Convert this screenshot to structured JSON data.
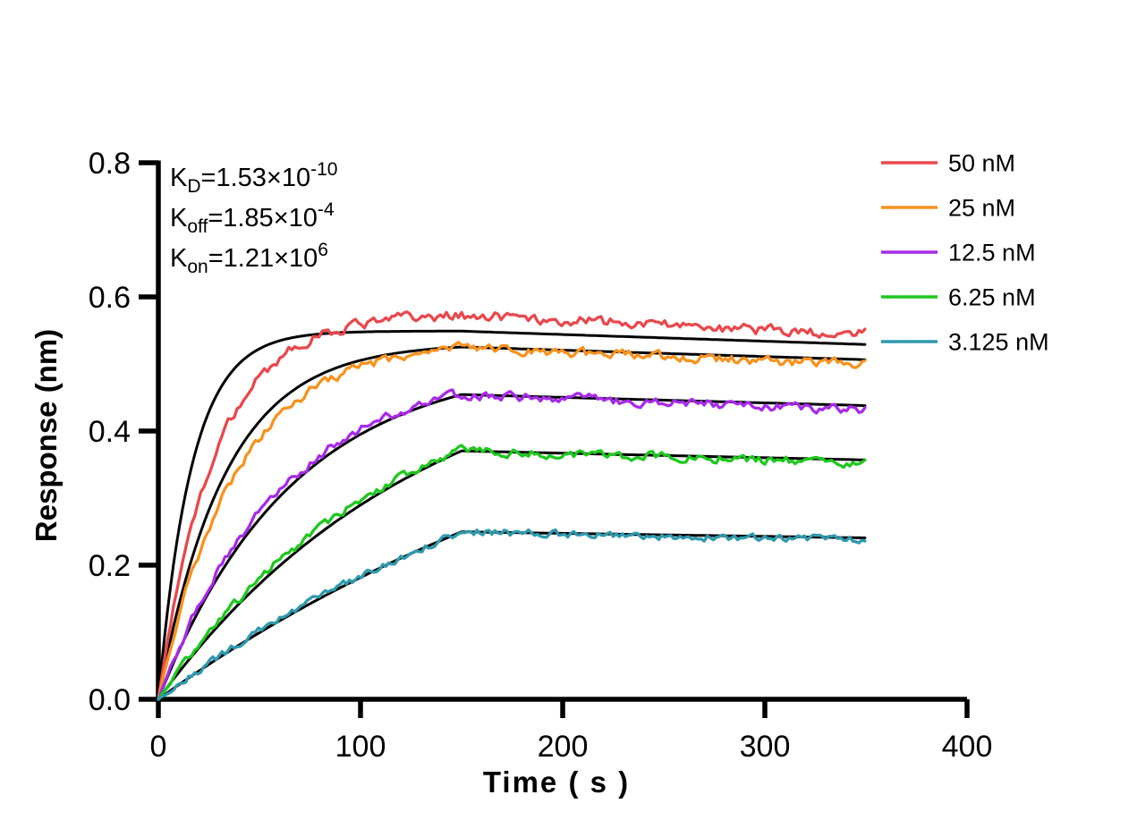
{
  "figure": {
    "background_color": "#FFFFFF",
    "description": "Binding kinetics sensorgram: response vs time for five analyte concentrations with black 1:1 model fit curves"
  },
  "chart_data": {
    "type": "line",
    "title": "",
    "xlabel": "Time ( s )",
    "ylabel": "Response (nm)",
    "xlim": [
      0,
      400
    ],
    "ylim": [
      0,
      0.8
    ],
    "xticks": [
      "0",
      "100",
      "200",
      "300",
      "400"
    ],
    "xtick_values": [
      0,
      100,
      200,
      300,
      400
    ],
    "yticks": [
      "0.0",
      "0.2",
      "0.4",
      "0.6",
      "0.8"
    ],
    "ytick_values": [
      0,
      0.2,
      0.4,
      0.6,
      0.8
    ],
    "grid": false,
    "legend_position": "top-right",
    "association_end_s": 150,
    "trace_end_s": 350,
    "axis_color": "#000000",
    "fit_color": "#000000",
    "annotation": {
      "lines": [
        {
          "base": "K",
          "sub": "D",
          "body": "=1.53×10",
          "sup": "-10",
          "plain": "KD=1.53×10^-10"
        },
        {
          "base": "K",
          "sub": "off",
          "body": "=1.85×10",
          "sup": "-4",
          "plain": "Koff=1.85×10^-4"
        },
        {
          "base": "K",
          "sub": "on",
          "body": "=1.21×10",
          "sup": "6",
          "plain": "Kon=1.21×10^6"
        }
      ]
    },
    "series": [
      {
        "label": "50 nM",
        "color": "#E8484C",
        "plateau_nm": 0.57,
        "end_nm": 0.53,
        "data_model": {
          "req": 0.575,
          "kobs": 0.036,
          "koff": 0.00025,
          "noise": 0.0068
        },
        "fit_model": {
          "req": 0.549,
          "kobs": 0.0607,
          "koff": 0.000185
        }
      },
      {
        "label": "25 nM",
        "color": "#F6921E",
        "plateau_nm": 0.53,
        "end_nm": 0.505,
        "data_model": {
          "req": 0.535,
          "kobs": 0.026,
          "koff": 0.00025,
          "noise": 0.006
        },
        "fit_model": {
          "req": 0.531,
          "kobs": 0.0303,
          "koff": 0.000185
        }
      },
      {
        "label": "12.5 nM",
        "color": "#A82AE8",
        "plateau_nm": 0.455,
        "end_nm": 0.43,
        "data_model": {
          "req": 0.497,
          "kobs": 0.0165,
          "koff": 0.00027,
          "noise": 0.006
        },
        "fit_model": {
          "req": 0.507,
          "kobs": 0.0151,
          "koff": 0.000185
        }
      },
      {
        "label": "6.25 nM",
        "color": "#1EC71E",
        "plateau_nm": 0.37,
        "end_nm": 0.355,
        "data_model": {
          "req": 0.506,
          "kobs": 0.0088,
          "koff": 0.00025,
          "noise": 0.0055
        },
        "fit_model": {
          "req": 0.546,
          "kobs": 0.00756,
          "koff": 0.000185
        }
      },
      {
        "label": "3.125 nM",
        "color": "#2E99AD",
        "plateau_nm": 0.25,
        "end_nm": 0.24,
        "data_model": {
          "req": 0.525,
          "kobs": 0.0043,
          "koff": 0.00024,
          "noise": 0.005
        },
        "fit_model": {
          "req": 0.577,
          "kobs": 0.00378,
          "koff": 0.000185
        }
      }
    ]
  }
}
